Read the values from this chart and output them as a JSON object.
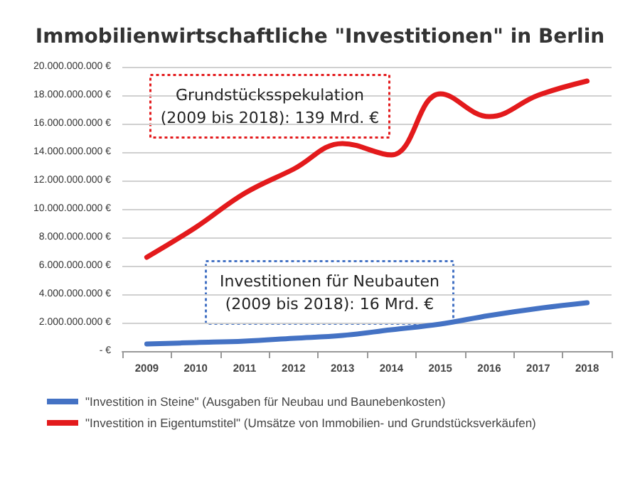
{
  "chart_data": {
    "type": "line",
    "title": "Immobilienwirtschaftliche \"Investitionen\" in Berlin",
    "categories": [
      "2009",
      "2010",
      "2011",
      "2012",
      "2013",
      "2014",
      "2015",
      "2016",
      "2017",
      "2018"
    ],
    "series": [
      {
        "name": "\"Investition in Steine\" (Ausgaben für Neubau und Baunebenkosten)",
        "color": "#4472c4",
        "values": [
          500000000,
          600000000,
          700000000,
          900000000,
          1100000000,
          1500000000,
          1900000000,
          2500000000,
          3000000000,
          3400000000
        ]
      },
      {
        "name": "\"Investition in Eigentumstitel\" (Umsätze von Immobilien- und Grundstücksverkäufen)",
        "color": "#e31a1c",
        "values": [
          6600000000,
          8700000000,
          11100000000,
          12800000000,
          14600000000,
          13800000000,
          18100000000,
          16500000000,
          18000000000,
          19000000000
        ]
      }
    ],
    "ylim": [
      0,
      20000000000
    ],
    "yticks": [
      {
        "value": 0,
        "label": "- €"
      },
      {
        "value": 2000000000,
        "label": "2.000.000.000 €"
      },
      {
        "value": 4000000000,
        "label": "4.000.000.000 €"
      },
      {
        "value": 6000000000,
        "label": "6.000.000.000 €"
      },
      {
        "value": 8000000000,
        "label": "8.000.000.000 €"
      },
      {
        "value": 10000000000,
        "label": "10.000.000.000 €"
      },
      {
        "value": 12000000000,
        "label": "12.000.000.000 €"
      },
      {
        "value": 14000000000,
        "label": "14.000.000.000 €"
      },
      {
        "value": 16000000000,
        "label": "16.000.000.000 €"
      },
      {
        "value": 18000000000,
        "label": "18.000.000.000 €"
      },
      {
        "value": 20000000000,
        "label": "20.000.000.000 €"
      }
    ],
    "grid": "y",
    "legend": "bottom",
    "marker": "none",
    "line_style": "solid",
    "annotations": [
      "Grundstücksspekulation\n(2009 bis 2018): 139 Mrd. €",
      "Investitionen für Neubauten\n(2009 bis 2018): 16 Mrd. €"
    ]
  }
}
